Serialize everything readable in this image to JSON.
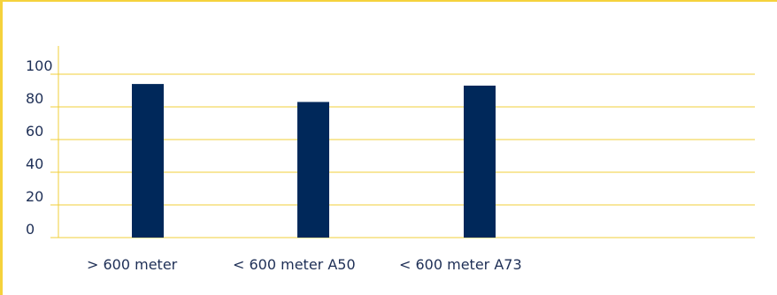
{
  "chart_data": {
    "type": "bar",
    "categories": [
      "> 600 meter",
      "< 600 meter A50",
      "< 600 meter A73"
    ],
    "values": [
      94,
      83,
      93
    ],
    "ylim": [
      0,
      100
    ],
    "yticks": [
      0,
      20,
      40,
      60,
      80,
      100
    ],
    "title": "",
    "xlabel": "",
    "ylabel": "",
    "grid": true,
    "legend": "none",
    "colors": {
      "bar": "#00285a",
      "grid": "#f0cf3a",
      "text": "#1e2f56",
      "border": "#f5d23c"
    }
  }
}
